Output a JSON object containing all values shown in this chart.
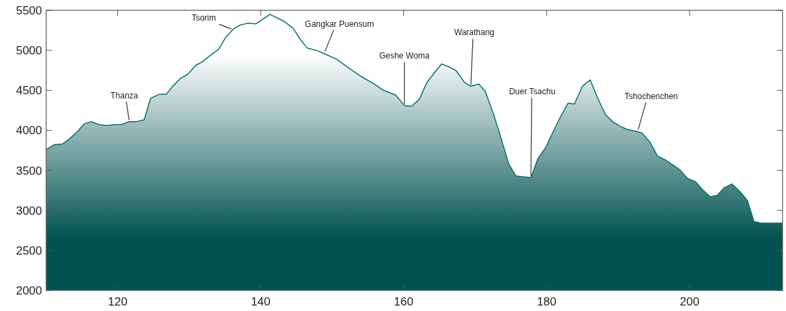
{
  "chart_data": {
    "type": "area",
    "color": "#005350",
    "x": [
      110,
      111.1,
      112.3,
      113.2,
      114.2,
      115.3,
      116.3,
      117.4,
      118.5,
      119.5,
      120.5,
      121.6,
      122.6,
      123.7,
      124.6,
      125.8,
      126.8,
      127.7,
      128.8,
      129.8,
      130.9,
      131.9,
      133,
      134.1,
      135.1,
      136.1,
      137,
      138.2,
      139.3,
      140.3,
      141.3,
      143.3,
      144.5,
      145.6,
      146.5,
      147.8,
      149.1,
      150.6,
      152.3,
      154.1,
      155.7,
      157.2,
      158.9,
      160.1,
      161.1,
      162.2,
      163.2,
      164.3,
      165.3,
      166.4,
      167.3,
      168.5,
      169.4,
      170.5,
      171.4,
      172.5,
      173.6,
      174.7,
      175.7,
      176.8,
      177.8,
      178.8,
      179.9,
      180.9,
      182,
      183,
      183.9,
      185,
      186.1,
      187.1,
      188.2,
      189.2,
      190.3,
      191.3,
      192.4,
      193.3,
      194.4,
      195.5,
      196.6,
      197.6,
      198.6,
      199.7,
      200.8,
      201.8,
      202.9,
      203.9,
      204.8,
      205.9,
      207.1,
      208.1,
      209,
      210,
      213
    ],
    "values": [
      3760,
      3820,
      3830,
      3890,
      3970,
      4080,
      4110,
      4070,
      4060,
      4070,
      4070,
      4110,
      4110,
      4130,
      4400,
      4450,
      4450,
      4550,
      4650,
      4700,
      4810,
      4860,
      4940,
      5010,
      5160,
      5260,
      5310,
      5340,
      5330,
      5390,
      5450,
      5360,
      5280,
      5130,
      5030,
      5000,
      4950,
      4890,
      4780,
      4670,
      4590,
      4500,
      4440,
      4310,
      4300,
      4390,
      4590,
      4720,
      4830,
      4790,
      4750,
      4600,
      4550,
      4580,
      4490,
      4220,
      3910,
      3580,
      3430,
      3420,
      3410,
      3650,
      3790,
      3980,
      4180,
      4340,
      4330,
      4550,
      4630,
      4410,
      4200,
      4110,
      4050,
      4010,
      3990,
      3970,
      3860,
      3680,
      3630,
      3570,
      3510,
      3400,
      3360,
      3260,
      3170,
      3190,
      3280,
      3330,
      3230,
      3120,
      2860,
      2840,
      2840
    ],
    "xlim": [
      110,
      213
    ],
    "xticks": [
      120,
      140,
      160,
      180,
      200
    ],
    "ylim": [
      2000,
      5500
    ],
    "yticks": [
      2000,
      2500,
      3000,
      3500,
      4000,
      4500,
      5000,
      5500
    ],
    "grid": false,
    "annotations": [
      {
        "text": "Thanza",
        "x": 121.6,
        "y": 4110
      },
      {
        "text": "Tsorim",
        "x": 135.9,
        "y": 5250
      },
      {
        "text": "Gangkar Puensum",
        "x": 149,
        "y": 4970
      },
      {
        "text": "Geshe Woma",
        "x": 160.1,
        "y": 4310
      },
      {
        "text": "Warathang",
        "x": 169.4,
        "y": 4550
      },
      {
        "text": "Duer Tsachu",
        "x": 177.8,
        "y": 3410
      },
      {
        "text": "Tshochenchen",
        "x": 192.8,
        "y": 3990
      }
    ]
  }
}
